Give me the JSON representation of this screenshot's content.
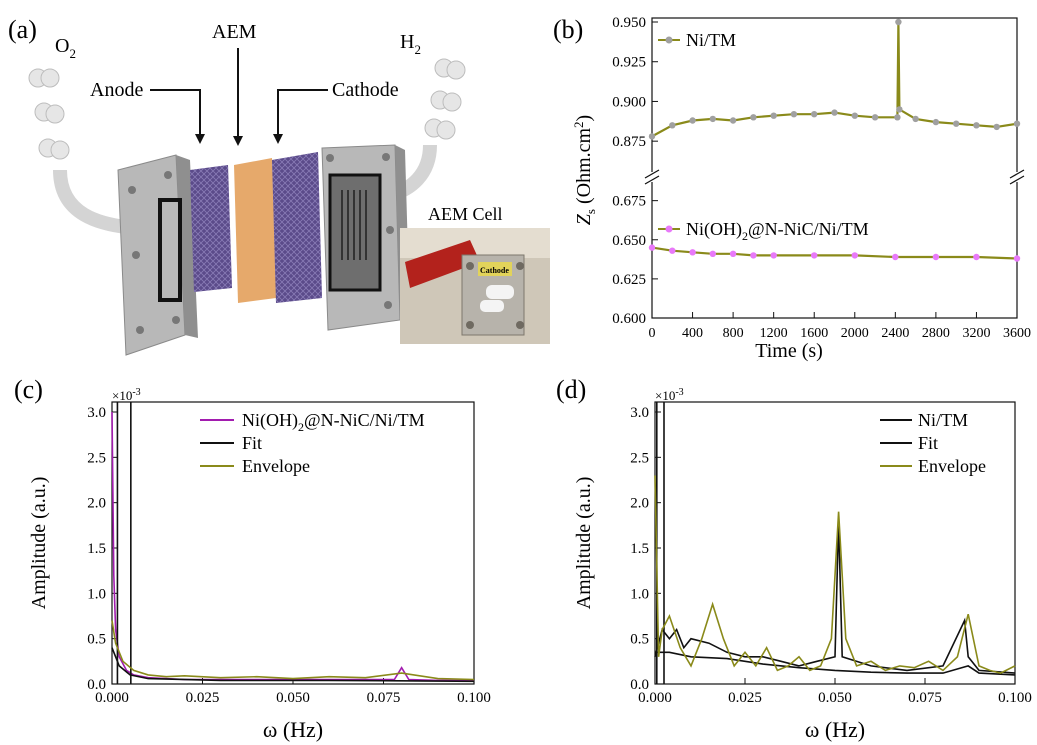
{
  "panel_labels": {
    "a": "(a)",
    "b": "(b)",
    "c": "(c)",
    "d": "(d)"
  },
  "schematic": {
    "o2_label": "O",
    "o2_sub": "2",
    "h2_label": "H",
    "h2_sub": "2",
    "aem_label": "AEM",
    "anode_label": "Anode",
    "cathode_label": "Cathode",
    "cell_label": "AEM Cell",
    "photo_tag": "Cathode"
  },
  "colors": {
    "olive": "#8a8a1a",
    "gray_marker": "#a0a0a0",
    "magenta": "#a21caf",
    "pink_marker": "#e879f9",
    "black": "#111111"
  },
  "chart_data": [
    {
      "id": "b",
      "type": "line",
      "xlabel": "Time (s)",
      "ylabel": "Z",
      "ylabel_sub": "s",
      "ylabel_unit": " (Ohm.cm",
      "ylabel_sup": "2",
      "ylabel_end": ")",
      "xlim": [
        0,
        3600
      ],
      "x_ticks": [
        "0",
        "400",
        "800",
        "1200",
        "1600",
        "2000",
        "2400",
        "2800",
        "3200",
        "3600"
      ],
      "y_ticks_upper": [
        "0.875",
        "0.900",
        "0.925",
        "0.950"
      ],
      "y_ticks_lower": [
        "0.600",
        "0.625",
        "0.650",
        "0.675"
      ],
      "axis_break": true,
      "ylim_upper": [
        0.86,
        0.95
      ],
      "ylim_lower": [
        0.6,
        0.685
      ],
      "series": [
        {
          "name": "Ni/TM",
          "color": "olive",
          "marker": "gray_marker",
          "x": [
            0,
            200,
            400,
            600,
            800,
            1000,
            1200,
            1400,
            1600,
            1800,
            2000,
            2200,
            2420,
            2430,
            2440,
            2600,
            2800,
            3000,
            3200,
            3400,
            3600
          ],
          "y": [
            0.878,
            0.885,
            0.888,
            0.889,
            0.888,
            0.89,
            0.891,
            0.892,
            0.892,
            0.893,
            0.891,
            0.89,
            0.89,
            0.95,
            0.895,
            0.889,
            0.887,
            0.886,
            0.885,
            0.884,
            0.886
          ]
        },
        {
          "name": "Ni(OH)2@N-NiC/Ni/TM",
          "name_parts": [
            "Ni(OH)",
            "2",
            "@N-NiC/Ni/TM"
          ],
          "color": "olive",
          "marker": "pink_marker",
          "x": [
            0,
            200,
            400,
            600,
            800,
            1000,
            1200,
            1600,
            2000,
            2400,
            2800,
            3200,
            3600
          ],
          "y": [
            0.645,
            0.643,
            0.642,
            0.641,
            0.641,
            0.64,
            0.64,
            0.64,
            0.64,
            0.639,
            0.639,
            0.639,
            0.638
          ]
        }
      ]
    },
    {
      "id": "c",
      "type": "line",
      "xlabel": "ω (Hz)",
      "ylabel": "Amplitude (a.u.)",
      "multiplier": "×10",
      "multiplier_exp": "-3",
      "xlim": [
        0,
        0.1
      ],
      "ylim": [
        0,
        3.0
      ],
      "x_ticks": [
        "0.000",
        "0.025",
        "0.050",
        "0.075",
        "0.100"
      ],
      "y_ticks": [
        "0.0",
        "0.5",
        "1.0",
        "1.5",
        "2.0",
        "2.5",
        "3.0"
      ],
      "series": [
        {
          "name": "Ni(OH)2@N-NiC/Ni/TM",
          "name_parts": [
            "Ni(OH)",
            "2",
            "@N-NiC/Ni/TM"
          ],
          "color": "magenta",
          "x": [
            0.0,
            0.0005,
            0.001,
            0.002,
            0.004,
            0.006,
            0.01,
            0.02,
            0.04,
            0.06,
            0.078,
            0.08,
            0.082,
            0.09,
            0.1
          ],
          "y": [
            3.0,
            1.2,
            0.6,
            0.3,
            0.15,
            0.1,
            0.07,
            0.05,
            0.05,
            0.05,
            0.05,
            0.18,
            0.05,
            0.04,
            0.04
          ]
        },
        {
          "name": "Fit",
          "color": "black",
          "vlines": [
            0.0015,
            0.0052
          ],
          "x": [
            0.0,
            0.002,
            0.005,
            0.01,
            0.03,
            0.06,
            0.1
          ],
          "y": [
            0.4,
            0.2,
            0.1,
            0.06,
            0.04,
            0.04,
            0.03
          ]
        },
        {
          "name": "Envelope",
          "color": "olive",
          "x": [
            0.0,
            0.001,
            0.003,
            0.006,
            0.01,
            0.015,
            0.02,
            0.03,
            0.04,
            0.05,
            0.06,
            0.07,
            0.08,
            0.09,
            0.1
          ],
          "y": [
            0.7,
            0.45,
            0.25,
            0.15,
            0.1,
            0.08,
            0.09,
            0.07,
            0.08,
            0.06,
            0.08,
            0.07,
            0.12,
            0.06,
            0.05
          ]
        }
      ]
    },
    {
      "id": "d",
      "type": "line",
      "xlabel": "ω (Hz)",
      "ylabel": "Amplitude (a.u.)",
      "multiplier": "×10",
      "multiplier_exp": "-3",
      "xlim": [
        0,
        0.1
      ],
      "ylim": [
        0,
        3.0
      ],
      "x_ticks": [
        "0.000",
        "0.025",
        "0.050",
        "0.075",
        "0.100"
      ],
      "y_ticks": [
        "0.0",
        "0.5",
        "1.0",
        "1.5",
        "2.0",
        "2.5",
        "3.0"
      ],
      "series": [
        {
          "name": "Ni/TM",
          "color": "black",
          "x": [
            0.0,
            0.002,
            0.004,
            0.006,
            0.008,
            0.01,
            0.015,
            0.02,
            0.025,
            0.03,
            0.035,
            0.04,
            0.045,
            0.05,
            0.051,
            0.052,
            0.06,
            0.07,
            0.08,
            0.086,
            0.087,
            0.09,
            0.1
          ],
          "y": [
            0.3,
            0.6,
            0.5,
            0.6,
            0.4,
            0.5,
            0.45,
            0.35,
            0.3,
            0.3,
            0.25,
            0.2,
            0.25,
            0.3,
            1.8,
            0.3,
            0.2,
            0.15,
            0.2,
            0.7,
            0.3,
            0.15,
            0.12
          ]
        },
        {
          "name": "Fit",
          "color": "black",
          "vlines": [
            0.0005,
            0.0025
          ],
          "x": [
            0.0,
            0.004,
            0.01,
            0.02,
            0.03,
            0.04,
            0.05,
            0.06,
            0.07,
            0.08,
            0.087,
            0.09,
            0.1
          ],
          "y": [
            0.35,
            0.35,
            0.3,
            0.28,
            0.22,
            0.18,
            0.15,
            0.13,
            0.12,
            0.12,
            0.2,
            0.12,
            0.1
          ]
        },
        {
          "name": "Envelope",
          "color": "olive",
          "x": [
            0.0,
            0.001,
            0.002,
            0.004,
            0.007,
            0.01,
            0.013,
            0.016,
            0.019,
            0.022,
            0.025,
            0.028,
            0.031,
            0.034,
            0.037,
            0.04,
            0.043,
            0.046,
            0.049,
            0.051,
            0.053,
            0.056,
            0.06,
            0.064,
            0.068,
            0.072,
            0.076,
            0.08,
            0.084,
            0.087,
            0.09,
            0.093,
            0.096,
            0.1
          ],
          "y": [
            2.3,
            0.3,
            0.6,
            0.75,
            0.4,
            0.2,
            0.5,
            0.88,
            0.5,
            0.2,
            0.35,
            0.2,
            0.4,
            0.15,
            0.2,
            0.3,
            0.15,
            0.2,
            0.5,
            1.9,
            0.5,
            0.2,
            0.25,
            0.15,
            0.2,
            0.18,
            0.25,
            0.15,
            0.3,
            0.77,
            0.2,
            0.15,
            0.12,
            0.2
          ]
        }
      ]
    }
  ]
}
